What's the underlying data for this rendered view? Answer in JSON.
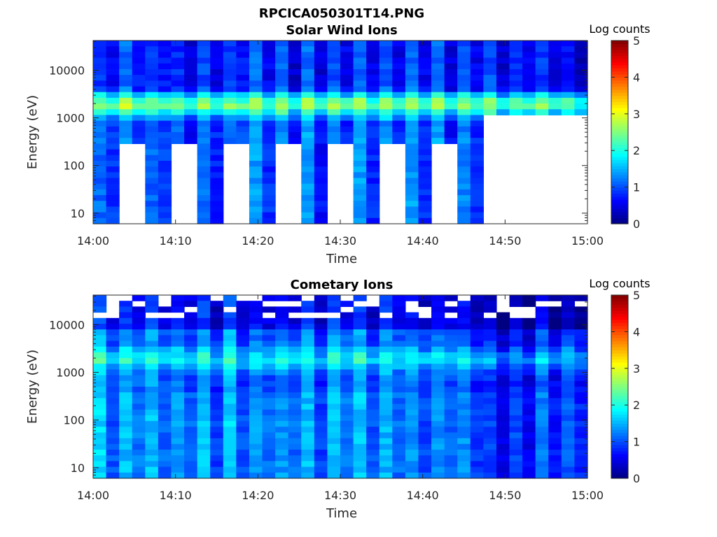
{
  "figure": {
    "title": "RPCICA050301T14.PNG"
  },
  "chart_data": [
    {
      "type": "heatmap",
      "title": "Solar Wind Ions",
      "xlabel": "Time",
      "ylabel": "Energy (eV)",
      "x_ticks": [
        "14:00",
        "14:10",
        "14:20",
        "14:30",
        "14:40",
        "14:50",
        "15:00"
      ],
      "xlim_minutes": [
        0,
        60
      ],
      "y_ticks": [
        "10",
        "100",
        "1000",
        "10000"
      ],
      "y_tick_values": [
        10,
        100,
        1000,
        10000
      ],
      "ylim": [
        6,
        42000
      ],
      "y_scale": "log",
      "colorbar": {
        "label": "Log counts",
        "ticks": [
          "0",
          "1",
          "2",
          "3",
          "4",
          "5"
        ],
        "range": [
          0,
          5
        ],
        "colormap": "jet"
      },
      "description_levels": {
        "peak_energy_eV": 1900,
        "peak_log_counts": 2.6,
        "background_log_counts": 1.0,
        "data_gaps": [
          {
            "t_start_min": 2.6,
            "t_end_min": 5.8,
            "e_max_eV": 270
          },
          {
            "t_start_min": 9.0,
            "t_end_min": 12.2,
            "e_max_eV": 270
          },
          {
            "t_start_min": 15.5,
            "t_end_min": 18.7,
            "e_max_eV": 270
          },
          {
            "t_start_min": 21.9,
            "t_end_min": 25.1,
            "e_max_eV": 270
          },
          {
            "t_start_min": 28.3,
            "t_end_min": 31.5,
            "e_max_eV": 270
          },
          {
            "t_start_min": 34.7,
            "t_end_min": 37.9,
            "e_max_eV": 270
          },
          {
            "t_start_min": 41.1,
            "t_end_min": 44.3,
            "e_max_eV": 270
          },
          {
            "t_start_min": 47.5,
            "t_end_min": 60.0,
            "e_max_eV": 1200
          }
        ]
      }
    },
    {
      "type": "heatmap",
      "title": "Cometary Ions",
      "xlabel": "Time",
      "ylabel": "Energy (eV)",
      "x_ticks": [
        "14:00",
        "14:10",
        "14:20",
        "14:30",
        "14:40",
        "14:50",
        "15:00"
      ],
      "xlim_minutes": [
        0,
        60
      ],
      "y_ticks": [
        "10",
        "100",
        "1000",
        "10000"
      ],
      "y_tick_values": [
        10,
        100,
        1000,
        10000
      ],
      "ylim": [
        6,
        42000
      ],
      "y_scale": "log",
      "colorbar": {
        "label": "Log counts",
        "ticks": [
          "0",
          "1",
          "2",
          "3",
          "4",
          "5"
        ],
        "range": [
          0,
          5
        ],
        "colormap": "jet"
      },
      "description_levels": {
        "peak_energy_eV": 1900,
        "peak_log_counts": 1.9,
        "background_log_counts": 1.1,
        "high_energy_gaps_above_eV": 14000
      }
    }
  ]
}
